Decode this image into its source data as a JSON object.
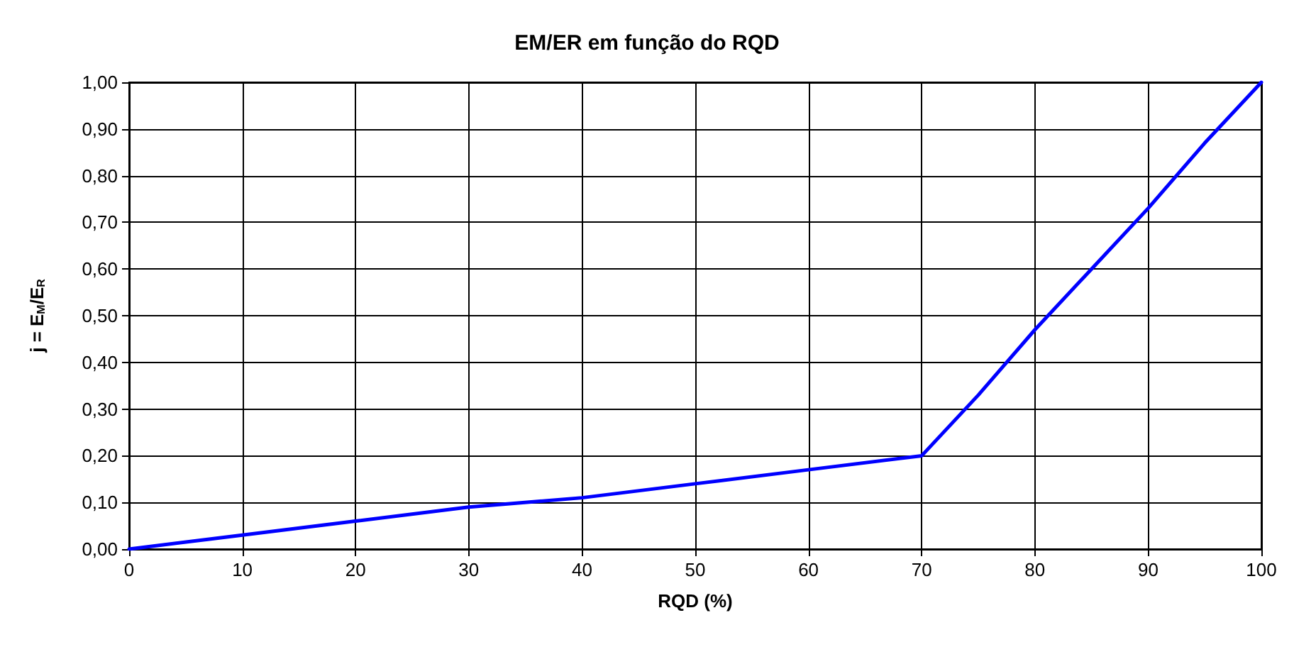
{
  "chart_data": {
    "type": "line",
    "title": "EM/ER em função do RQD",
    "xlabel": "RQD (%)",
    "ylabel": "j = E$_{M}$/E$_{R}$",
    "x": [
      0,
      10,
      20,
      30,
      40,
      50,
      60,
      70,
      75,
      80,
      85,
      90,
      95,
      100
    ],
    "series": [
      {
        "color": "#0000ff",
        "values": [
          0,
          0.03,
          0.06,
          0.09,
          0.11,
          0.14,
          0.17,
          0.2,
          0.33,
          0.47,
          0.6,
          0.73,
          0.87,
          1.0
        ]
      }
    ],
    "xlim": [
      0,
      100
    ],
    "xticks": [
      0,
      10,
      20,
      30,
      40,
      50,
      60,
      70,
      80,
      90,
      100
    ],
    "ylim": [
      0,
      1
    ],
    "yticks": [
      {
        "value": 0,
        "label": "0,00"
      },
      {
        "value": 0.1,
        "label": "0,10"
      },
      {
        "value": 0.2,
        "label": "0,20"
      },
      {
        "value": 0.3,
        "label": "0,30"
      },
      {
        "value": 0.4,
        "label": "0,40"
      },
      {
        "value": 0.5,
        "label": "0,50"
      },
      {
        "value": 0.6,
        "label": "0,60"
      },
      {
        "value": 0.7,
        "label": "0,70"
      },
      {
        "value": 0.8,
        "label": "0,80"
      },
      {
        "value": 0.9,
        "label": "0,90"
      },
      {
        "value": 1,
        "label": "1,00"
      }
    ],
    "grid": true,
    "marker": "none",
    "line_style": "solid"
  }
}
